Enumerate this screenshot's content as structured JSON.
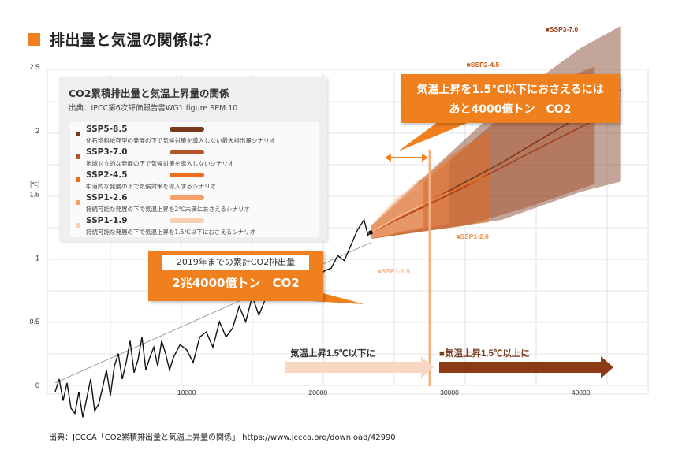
{
  "page": {
    "title": "排出量と気温の関係は？"
  },
  "legend": {
    "title": "CO2累積排出量と気温上昇量の関係",
    "source": "出典：IPCC第6次評価報告書WG1 figure SPM.10",
    "items": [
      {
        "name": "SSP5-8.5",
        "desc": "化石燃料依存型の発展の下で気候対策を導入しない最大排出量シナリオ",
        "color": "#7a3a1c"
      },
      {
        "name": "SSP3-7.0",
        "desc": "地域対立的な発展の下で気候対策を導入しないシナリオ",
        "color": "#b5532a"
      },
      {
        "name": "SSP2-4.5",
        "desc": "中道的な発展の下で気候対策を導入するシナリオ",
        "color": "#ef6c1f"
      },
      {
        "name": "SSP1-2.6",
        "desc": "持続可能な発展の下で気温上昇を2℃未満におさえるシナリオ",
        "color": "#f3a06a"
      },
      {
        "name": "SSP1-1.9",
        "desc": "持続可能な発展の下で気温上昇を1.5℃以下におさえるシナリオ",
        "color": "#f8cfb0"
      }
    ]
  },
  "callout_top": {
    "line1": "気温上昇を1.5℃以下におさえるには",
    "line2": "あと4000億トン　CO2"
  },
  "callout_mid": {
    "label": "2019年までの累計CO2排出量",
    "value": "2兆4000億トン　CO2"
  },
  "arrows": {
    "below": "気温上昇1.5℃以下に",
    "above": "■気温上昇1.5℃以上に"
  },
  "footer": {
    "source": "出典：JCCCA「CO2累積排出量と気温上昇量の関係」 https://www.jccca.org/download/42990"
  },
  "colors": {
    "accent": "#f07f1e",
    "dark": "#7a3a1c",
    "grid": "#dcdcdc"
  },
  "chart_data": {
    "type": "line",
    "ylabel": "[℃]",
    "xlim": [
      0,
      45000
    ],
    "ylim": [
      0,
      2.5
    ],
    "yticks": [
      0,
      0.5,
      1,
      1.5,
      2,
      2.5
    ],
    "xticks": [
      10000,
      20000,
      30000,
      40000
    ],
    "grid": true,
    "threshold_x": 28500,
    "historical": {
      "name": "",
      "x": [
        0,
        300,
        600,
        900,
        1200,
        1500,
        1800,
        2100,
        2400,
        2700,
        3000,
        3300,
        3600,
        3900,
        4200,
        4500,
        4800,
        5100,
        5400,
        5700,
        6000,
        6300,
        6600,
        6900,
        7200,
        7500,
        7800,
        8100,
        8400,
        8700,
        9000,
        9500,
        10000,
        10500,
        11000,
        11500,
        12000,
        12500,
        13000,
        13500,
        14000,
        14500,
        15000,
        15500,
        16000,
        16500,
        17000,
        17500,
        18000,
        18500,
        19000,
        19500,
        20000,
        20500,
        21000,
        21500,
        22000,
        22500,
        23000,
        23500,
        23800,
        24000
      ],
      "y": [
        -0.05,
        0.05,
        -0.12,
        0.02,
        -0.18,
        -0.22,
        -0.05,
        -0.25,
        -0.1,
        0.05,
        -0.2,
        -0.15,
        -0.02,
        0.12,
        -0.08,
        0.15,
        0.25,
        0.05,
        0.18,
        0.35,
        0.1,
        0.2,
        0.38,
        0.12,
        0.22,
        0.3,
        0.15,
        0.35,
        0.25,
        0.12,
        0.22,
        0.32,
        0.28,
        0.18,
        0.38,
        0.42,
        0.3,
        0.5,
        0.38,
        0.45,
        0.62,
        0.5,
        0.7,
        0.55,
        0.68,
        0.85,
        0.7,
        0.78,
        0.92,
        0.75,
        0.95,
        0.9,
        0.85,
        0.9,
        0.92,
        1.02,
        0.98,
        1.1,
        1.22,
        1.3,
        1.18,
        1.2
      ]
    },
    "trend": {
      "x": [
        0,
        24000
      ],
      "y": [
        0.02,
        1.12
      ]
    },
    "scenarios": [
      {
        "name": "SSP5-8.5",
        "x": [
          24000,
          34000,
          40000,
          43000
        ],
        "center": [
          1.2,
          1.75,
          2.12,
          2.32
        ],
        "low": [
          1.15,
          1.3,
          1.52,
          1.6
        ],
        "high": [
          1.25,
          2.2,
          2.65,
          2.82
        ]
      },
      {
        "name": "SSP3-7.0",
        "x": [
          24000,
          31000,
          36000,
          41000
        ],
        "center": [
          1.2,
          1.55,
          1.82,
          2.08
        ],
        "low": [
          1.15,
          1.25,
          1.4,
          1.58
        ],
        "high": [
          1.25,
          1.85,
          2.3,
          2.5
        ]
      },
      {
        "name": "SSP2-4.5",
        "x": [
          24000,
          30000,
          33000
        ],
        "center": [
          1.2,
          1.52,
          1.65
        ],
        "low": [
          1.15,
          1.24,
          1.28
        ],
        "high": [
          1.25,
          1.8,
          2.0
        ]
      },
      {
        "name": "SSP1-2.6",
        "x": [
          24000,
          27500,
          30000
        ],
        "center": [
          1.2,
          1.4,
          1.52
        ],
        "low": [
          1.15,
          1.22,
          1.27
        ],
        "high": [
          1.25,
          1.6,
          1.78
        ]
      },
      {
        "name": "SSP1-1.9",
        "x": [
          24000,
          26000,
          28000
        ],
        "center": [
          1.2,
          1.32,
          1.42
        ],
        "low": [
          1.15,
          1.2,
          1.24
        ],
        "high": [
          1.25,
          1.48,
          1.6
        ]
      }
    ],
    "scenario_labels": [
      {
        "name": "■SSP5-8.5",
        "x": 41000,
        "y": 3.1,
        "color": "#7a3a1c"
      },
      {
        "name": "■SSP3-7.0",
        "x": 37300,
        "y": 2.78,
        "color": "#a1421d"
      },
      {
        "name": "■SSP2-4.5",
        "x": 31300,
        "y": 2.5,
        "color": "#d35d15"
      },
      {
        "name": "■SSP1-2.6",
        "x": 30500,
        "y": 1.15,
        "color": "#f08c4e"
      },
      {
        "name": "■SSP1-1.9",
        "x": 24500,
        "y": 0.88,
        "color": "#f6b98f"
      }
    ]
  }
}
